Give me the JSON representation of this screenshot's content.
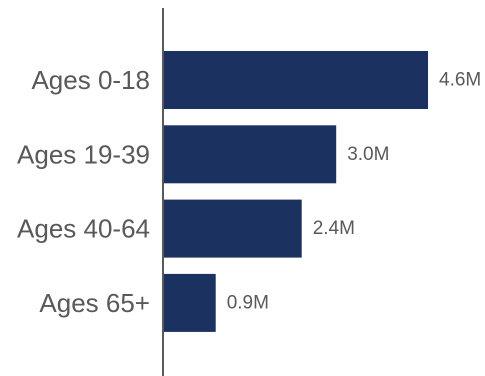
{
  "chart_data": {
    "type": "bar",
    "orientation": "horizontal",
    "categories": [
      "Ages 0-18",
      "Ages 19-39",
      "Ages 40-64",
      "Ages 65+"
    ],
    "values": [
      4.6,
      3.0,
      2.4,
      0.9
    ],
    "value_labels": [
      "4.6M",
      "3.0M",
      "2.4M",
      "0.9M"
    ],
    "unit": "M",
    "xlim": [
      0,
      5
    ],
    "title": "",
    "xlabel": "",
    "ylabel": "",
    "grid": false,
    "legend": "none",
    "colors": {
      "bar": "#1b3160",
      "axis": "#595959",
      "text": "#595959"
    }
  }
}
